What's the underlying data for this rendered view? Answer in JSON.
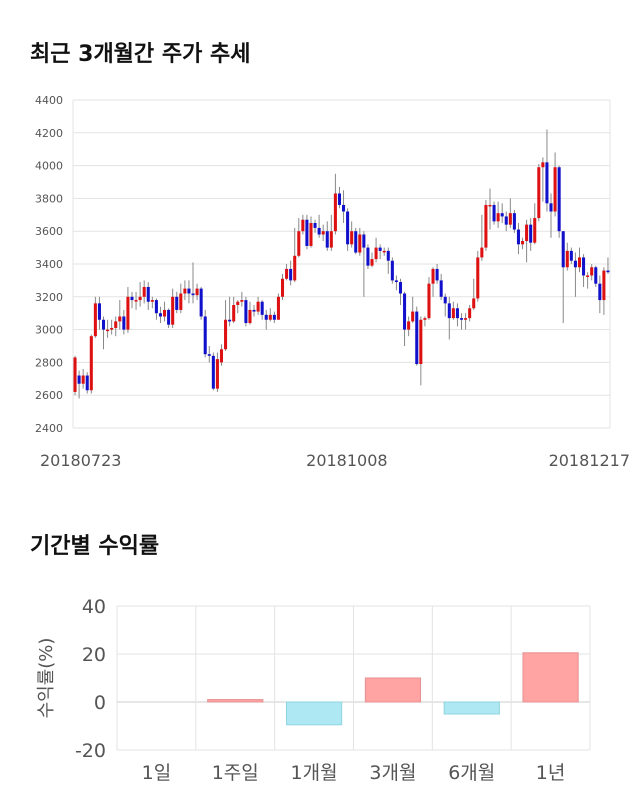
{
  "sections": {
    "price_title": "최근 3개월간 주가 추세",
    "return_title": "기간별 수익률"
  },
  "colors": {
    "up": "#dd1111",
    "down": "#1111cc",
    "positive_bar": "#ffa3a3",
    "negative_bar": "#aee8f2",
    "grid": "#e3e3e3"
  },
  "chart_data": [
    {
      "type": "candlestick",
      "title": "최근 3개월간 주가 추세",
      "ylim": [
        2400,
        4400
      ],
      "yticks": [
        2400,
        2600,
        2800,
        3000,
        3200,
        3400,
        3600,
        3800,
        4000,
        4200,
        4400
      ],
      "xtick_labels": [
        "20180723",
        "20181008",
        "20181217"
      ],
      "grid": true,
      "candles": [
        [
          2620,
          2830,
          2600,
          2840
        ],
        [
          2720,
          2670,
          2580,
          2750
        ],
        [
          2670,
          2720,
          2640,
          2760
        ],
        [
          2720,
          2630,
          2610,
          2740
        ],
        [
          2630,
          2960,
          2610,
          2970
        ],
        [
          2960,
          3160,
          2950,
          3200
        ],
        [
          3160,
          3060,
          3000,
          3200
        ],
        [
          3060,
          3000,
          2880,
          3080
        ],
        [
          3000,
          3000,
          2950,
          3060
        ],
        [
          3000,
          3010,
          2970,
          3060
        ],
        [
          3010,
          3050,
          2960,
          3080
        ],
        [
          3050,
          3080,
          3000,
          3180
        ],
        [
          3080,
          3000,
          2970,
          3120
        ],
        [
          3000,
          3200,
          2980,
          3260
        ],
        [
          3200,
          3180,
          3130,
          3230
        ],
        [
          3180,
          3180,
          3120,
          3230
        ],
        [
          3180,
          3200,
          3140,
          3290
        ],
        [
          3200,
          3260,
          3160,
          3300
        ],
        [
          3260,
          3170,
          3120,
          3290
        ],
        [
          3170,
          3180,
          3130,
          3200
        ],
        [
          3180,
          3100,
          3060,
          3190
        ],
        [
          3100,
          3080,
          3040,
          3140
        ],
        [
          3080,
          3120,
          3050,
          3170
        ],
        [
          3120,
          3030,
          3010,
          3130
        ],
        [
          3030,
          3200,
          3010,
          3250
        ],
        [
          3200,
          3120,
          3100,
          3230
        ],
        [
          3120,
          3220,
          3100,
          3280
        ],
        [
          3220,
          3250,
          3180,
          3300
        ],
        [
          3250,
          3220,
          3160,
          3300
        ],
        [
          3220,
          3210,
          3160,
          3410
        ],
        [
          3210,
          3250,
          3180,
          3280
        ],
        [
          3250,
          3080,
          3060,
          3260
        ],
        [
          3080,
          2850,
          2830,
          3120
        ],
        [
          2850,
          2840,
          2800,
          2900
        ],
        [
          2840,
          2640,
          2630,
          2860
        ],
        [
          2640,
          2820,
          2620,
          2860
        ],
        [
          2800,
          2880,
          2780,
          2910
        ],
        [
          2880,
          3060,
          2870,
          3180
        ],
        [
          3060,
          3050,
          3020,
          3200
        ],
        [
          3050,
          3150,
          3040,
          3200
        ],
        [
          3150,
          3170,
          3100,
          3180
        ],
        [
          3170,
          3180,
          3140,
          3230
        ],
        [
          3180,
          3040,
          3020,
          3200
        ],
        [
          3040,
          3120,
          3030,
          3170
        ],
        [
          3120,
          3110,
          3080,
          3150
        ],
        [
          3110,
          3170,
          3090,
          3200
        ],
        [
          3170,
          3090,
          3060,
          3180
        ],
        [
          3090,
          3060,
          3000,
          3120
        ],
        [
          3060,
          3090,
          3050,
          3130
        ],
        [
          3090,
          3060,
          3040,
          3110
        ],
        [
          3060,
          3200,
          3060,
          3220
        ],
        [
          3200,
          3310,
          3180,
          3340
        ],
        [
          3310,
          3370,
          3300,
          3400
        ],
        [
          3370,
          3300,
          3270,
          3420
        ],
        [
          3300,
          3450,
          3290,
          3620
        ],
        [
          3450,
          3600,
          3440,
          3680
        ],
        [
          3600,
          3670,
          3580,
          3700
        ],
        [
          3670,
          3510,
          3490,
          3700
        ],
        [
          3510,
          3650,
          3500,
          3690
        ],
        [
          3650,
          3620,
          3590,
          3670
        ],
        [
          3620,
          3580,
          3560,
          3700
        ],
        [
          3580,
          3600,
          3540,
          3640
        ],
        [
          3600,
          3500,
          3480,
          3660
        ],
        [
          3500,
          3600,
          3480,
          3700
        ],
        [
          3600,
          3830,
          3580,
          3950
        ],
        [
          3830,
          3760,
          3740,
          3870
        ],
        [
          3760,
          3720,
          3650,
          3850
        ],
        [
          3720,
          3520,
          3480,
          3740
        ],
        [
          3520,
          3600,
          3500,
          3660
        ],
        [
          3600,
          3470,
          3460,
          3620
        ],
        [
          3470,
          3580,
          3450,
          3620
        ],
        [
          3580,
          3500,
          3200,
          3600
        ],
        [
          3500,
          3390,
          3370,
          3520
        ],
        [
          3390,
          3430,
          3380,
          3470
        ],
        [
          3430,
          3500,
          3410,
          3560
        ],
        [
          3500,
          3480,
          3430,
          3520
        ],
        [
          3480,
          3480,
          3450,
          3500
        ],
        [
          3480,
          3420,
          3340,
          3500
        ],
        [
          3420,
          3300,
          3280,
          3440
        ],
        [
          3300,
          3290,
          3240,
          3330
        ],
        [
          3290,
          3220,
          3150,
          3310
        ],
        [
          3220,
          3000,
          2900,
          3230
        ],
        [
          3000,
          3050,
          2960,
          3080
        ],
        [
          3050,
          3110,
          3040,
          3200
        ],
        [
          3110,
          2790,
          2780,
          3140
        ],
        [
          2790,
          3060,
          2660,
          3080
        ],
        [
          3060,
          3070,
          3020,
          3080
        ],
        [
          3070,
          3280,
          3060,
          3320
        ],
        [
          3280,
          3370,
          3200,
          3380
        ],
        [
          3370,
          3300,
          3280,
          3400
        ],
        [
          3300,
          3200,
          3180,
          3340
        ],
        [
          3200,
          3160,
          3080,
          3220
        ],
        [
          3160,
          3070,
          2940,
          3200
        ],
        [
          3070,
          3130,
          3060,
          3170
        ],
        [
          3130,
          3070,
          3020,
          3160
        ],
        [
          3070,
          3060,
          3000,
          3100
        ],
        [
          3060,
          3070,
          3000,
          3100
        ],
        [
          3070,
          3130,
          3050,
          3150
        ],
        [
          3130,
          3190,
          3120,
          3310
        ],
        [
          3190,
          3440,
          3170,
          3480
        ],
        [
          3440,
          3500,
          3420,
          3700
        ],
        [
          3500,
          3760,
          3480,
          3790
        ],
        [
          3760,
          3760,
          3610,
          3860
        ],
        [
          3760,
          3660,
          3640,
          3780
        ],
        [
          3660,
          3710,
          3620,
          3780
        ],
        [
          3710,
          3690,
          3650,
          3770
        ],
        [
          3690,
          3640,
          3600,
          3720
        ],
        [
          3640,
          3710,
          3620,
          3800
        ],
        [
          3710,
          3610,
          3590,
          3730
        ],
        [
          3610,
          3520,
          3460,
          3650
        ],
        [
          3520,
          3540,
          3490,
          3560
        ],
        [
          3540,
          3640,
          3410,
          3670
        ],
        [
          3640,
          3530,
          3480,
          3680
        ],
        [
          3530,
          3680,
          3520,
          3770
        ],
        [
          3680,
          3990,
          3660,
          4010
        ],
        [
          3990,
          4020,
          3780,
          4050
        ],
        [
          4020,
          3770,
          3720,
          4220
        ],
        [
          3770,
          3720,
          3560,
          3830
        ],
        [
          3720,
          3990,
          3690,
          4080
        ],
        [
          3990,
          3600,
          3560,
          4000
        ],
        [
          3600,
          3380,
          3040,
          3600
        ],
        [
          3380,
          3480,
          3360,
          3530
        ],
        [
          3480,
          3420,
          3400,
          3500
        ],
        [
          3420,
          3380,
          3200,
          3470
        ],
        [
          3380,
          3440,
          3350,
          3500
        ],
        [
          3440,
          3330,
          3260,
          3460
        ],
        [
          3330,
          3330,
          3250,
          3350
        ],
        [
          3330,
          3380,
          3300,
          3400
        ],
        [
          3380,
          3280,
          3260,
          3390
        ],
        [
          3280,
          3180,
          3100,
          3330
        ],
        [
          3180,
          3360,
          3090,
          3380
        ],
        [
          3360,
          3350,
          3340,
          3440
        ]
      ]
    },
    {
      "type": "bar",
      "title": "기간별 수익률",
      "ylabel": "수익률(%)",
      "ylim": [
        -20,
        40
      ],
      "yticks": [
        40,
        20,
        0,
        -20
      ],
      "categories": [
        "1일",
        "1주일",
        "1개월",
        "3개월",
        "6개월",
        "1년"
      ],
      "values": [
        0,
        1,
        -9.5,
        10,
        -5,
        20.5
      ],
      "grid": true
    }
  ]
}
